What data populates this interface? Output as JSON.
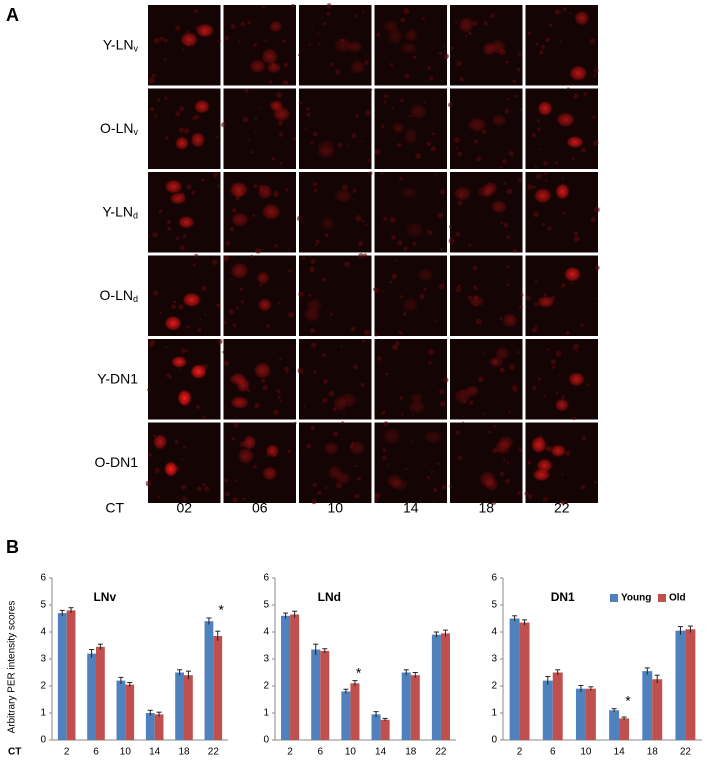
{
  "panel_a": {
    "label": "A",
    "rows": [
      {
        "label": "Y-LN",
        "subscript": "v"
      },
      {
        "label": "O-LN",
        "subscript": "v"
      },
      {
        "label": "Y-LN",
        "subscript": "d"
      },
      {
        "label": "O-LN",
        "subscript": "d"
      },
      {
        "label": "Y-DN1"
      },
      {
        "label": "O-DN1"
      }
    ],
    "x_label": "CT",
    "columns": [
      "02",
      "06",
      "10",
      "14",
      "18",
      "22"
    ]
  },
  "panel_b": {
    "label": "B"
  },
  "chart_data": [
    {
      "type": "bar",
      "title": "LNv",
      "y_label": "Arbitrary PER intensity scores",
      "x_label": "CT",
      "categories": [
        "2",
        "6",
        "10",
        "14",
        "18",
        "22"
      ],
      "series": [
        {
          "name": "Young",
          "color": "#4f81bd",
          "values": [
            4.7,
            3.2,
            2.2,
            1.0,
            2.5,
            4.4
          ],
          "errors": [
            0.1,
            0.15,
            0.12,
            0.1,
            0.1,
            0.12
          ]
        },
        {
          "name": "Old",
          "color": "#c0504d",
          "values": [
            4.8,
            3.45,
            2.05,
            0.95,
            2.4,
            3.85
          ],
          "errors": [
            0.1,
            0.1,
            0.08,
            0.08,
            0.15,
            0.18
          ]
        }
      ],
      "annotations": [
        {
          "text": "*",
          "category": "22"
        }
      ],
      "ylim": [
        0,
        6
      ],
      "yticks": [
        0,
        1,
        2,
        3,
        4,
        5,
        6
      ]
    },
    {
      "type": "bar",
      "title": "LNd",
      "categories": [
        "2",
        "6",
        "10",
        "14",
        "18",
        "22"
      ],
      "series": [
        {
          "name": "Young",
          "color": "#4f81bd",
          "values": [
            4.6,
            3.35,
            1.8,
            0.95,
            2.5,
            3.9
          ],
          "errors": [
            0.1,
            0.2,
            0.08,
            0.1,
            0.1,
            0.1
          ]
        },
        {
          "name": "Old",
          "color": "#c0504d",
          "values": [
            4.65,
            3.3,
            2.1,
            0.75,
            2.4,
            3.95
          ],
          "errors": [
            0.12,
            0.08,
            0.1,
            0.05,
            0.1,
            0.12
          ]
        }
      ],
      "annotations": [
        {
          "text": "*",
          "category": "10"
        }
      ],
      "ylim": [
        0,
        6
      ],
      "yticks": [
        0,
        1,
        2,
        3,
        4,
        5,
        6
      ]
    },
    {
      "type": "bar",
      "title": "DN1",
      "legend": "top-right",
      "categories": [
        "2",
        "6",
        "10",
        "14",
        "18",
        "22"
      ],
      "series": [
        {
          "name": "Young",
          "color": "#4f81bd",
          "values": [
            4.5,
            2.2,
            1.9,
            1.1,
            2.55,
            4.05
          ],
          "errors": [
            0.1,
            0.15,
            0.12,
            0.06,
            0.12,
            0.15
          ]
        },
        {
          "name": "Old",
          "color": "#c0504d",
          "values": [
            4.35,
            2.5,
            1.9,
            0.8,
            2.25,
            4.1
          ],
          "errors": [
            0.1,
            0.1,
            0.07,
            0.05,
            0.15,
            0.12
          ]
        }
      ],
      "annotations": [
        {
          "text": "*",
          "category": "14"
        }
      ],
      "ylim": [
        0,
        6
      ],
      "yticks": [
        0,
        1,
        2,
        3,
        4,
        5,
        6
      ]
    }
  ]
}
